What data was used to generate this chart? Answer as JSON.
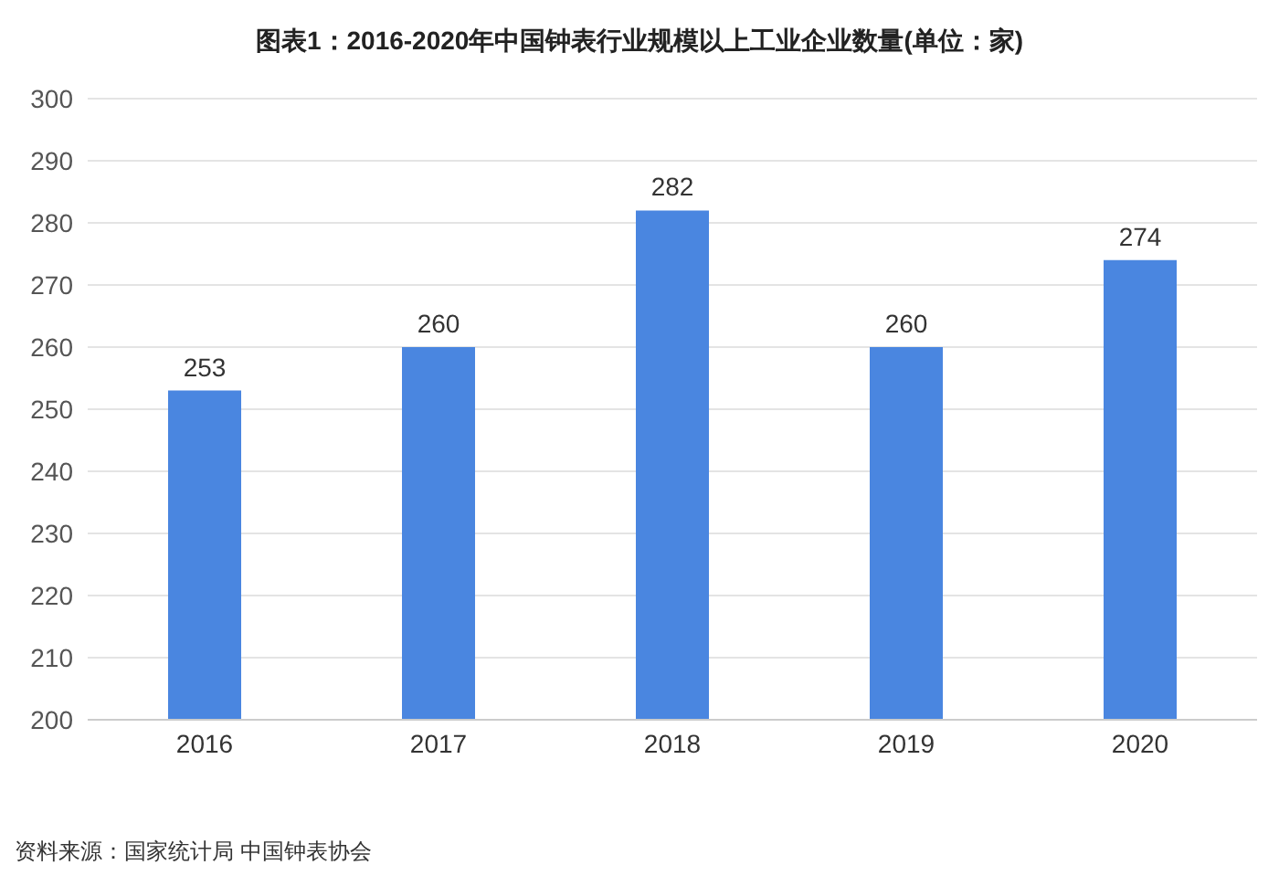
{
  "chart_data": {
    "type": "bar",
    "title": "图表1：2016-2020年中国钟表行业规模以上工业企业数量(单位：家)",
    "categories": [
      "2016",
      "2017",
      "2018",
      "2019",
      "2020"
    ],
    "values": [
      253,
      260,
      282,
      260,
      274
    ],
    "color": "#4a86e0",
    "ylim": [
      200,
      300
    ],
    "yticks": [
      200,
      210,
      220,
      230,
      240,
      250,
      260,
      270,
      280,
      290,
      300
    ],
    "grid": "y",
    "data_labels": true,
    "annotations": [
      "资料来源：国家统计局 中国钟表协会"
    ]
  }
}
